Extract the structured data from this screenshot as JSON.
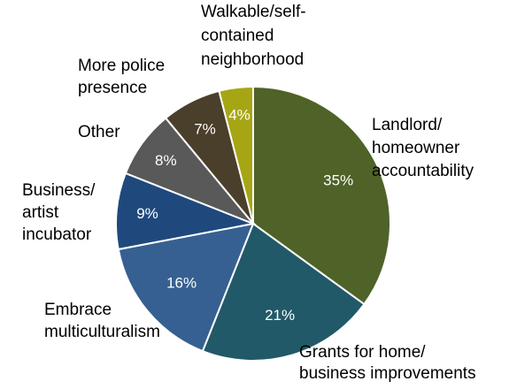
{
  "chart_data": {
    "type": "pie",
    "start": "12 o'clock",
    "direction": "clockwise",
    "slices": [
      {
        "category": [
          "Landlord/",
          "homeowner",
          "accountability"
        ],
        "value": 35,
        "label": "35%",
        "color": "#4f6228"
      },
      {
        "category": [
          "Grants for home/",
          "business improvements"
        ],
        "value": 21,
        "label": "21%",
        "color": "#215968"
      },
      {
        "category": [
          "Embrace",
          "multiculturalism"
        ],
        "value": 16,
        "label": "16%",
        "color": "#376092"
      },
      {
        "category": [
          "Business/",
          "artist",
          "incubator"
        ],
        "value": 9,
        "label": "9%",
        "color": "#1f497d"
      },
      {
        "category": [
          "Other"
        ],
        "value": 8,
        "label": "8%",
        "color": "#595959"
      },
      {
        "category": [
          "More police",
          "presence"
        ],
        "value": 7,
        "label": "7%",
        "color": "#4a3f2a"
      },
      {
        "category": [
          "Walkable/self-",
          "contained",
          "neighborhood"
        ],
        "value": 4,
        "label": "4%",
        "color": "#a6a614"
      }
    ]
  }
}
